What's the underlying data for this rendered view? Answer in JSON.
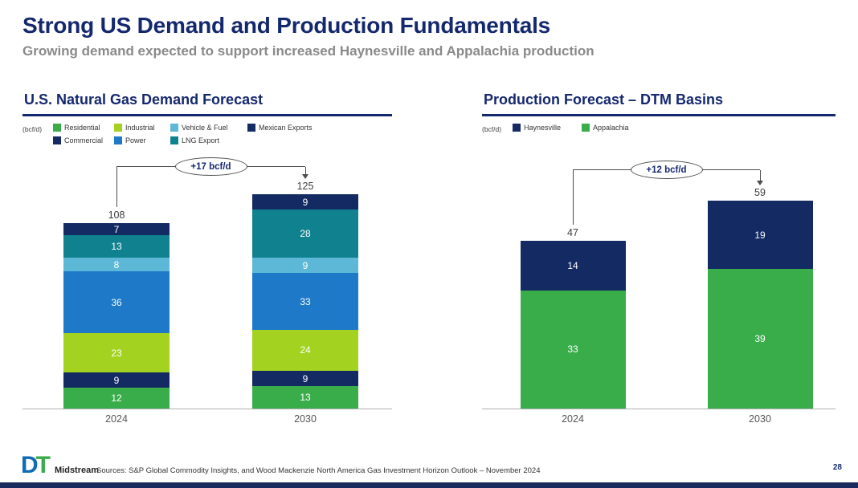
{
  "header": {
    "title": "Strong US Demand and Production Fundamentals",
    "subtitle": "Growing demand expected to support increased Haynesville and Appalachia production"
  },
  "footer": {
    "logo_dt_d": "D",
    "logo_dt_t": "T",
    "logo_text": "Midstream",
    "source": "Sources: S&P Global Commodity Insights, and Wood Mackenzie North America Gas Investment Horizon Outlook – November 2024",
    "page_number": "28"
  },
  "colors": {
    "navy": "#142a63",
    "title_navy": "#14286e",
    "subtitle_gray": "#8a8a8a",
    "green": "#3aad4b",
    "lime": "#a3d221",
    "blue": "#1e79c8",
    "light_blue": "#5cb8d6",
    "teal": "#10828f"
  },
  "chart_data": [
    {
      "type": "bar",
      "stacked": true,
      "title": "U.S. Natural Gas Demand Forecast",
      "unit_label": "(bcf/d)",
      "categories": [
        "2024",
        "2030"
      ],
      "series": [
        {
          "name": "Residential",
          "color": "#3aad4b",
          "values": [
            12,
            13
          ]
        },
        {
          "name": "Commercial",
          "color": "#142a63",
          "values": [
            9,
            9
          ]
        },
        {
          "name": "Industrial",
          "color": "#a3d221",
          "values": [
            23,
            24
          ]
        },
        {
          "name": "Power",
          "color": "#1e79c8",
          "values": [
            36,
            33
          ]
        },
        {
          "name": "Vehicle & Fuel",
          "color": "#5cb8d6",
          "values": [
            8,
            9
          ]
        },
        {
          "name": "LNG Export",
          "color": "#10828f",
          "values": [
            13,
            28
          ]
        },
        {
          "name": "Mexican Exports",
          "color": "#142a63",
          "values": [
            7,
            9
          ]
        }
      ],
      "legend_order": [
        [
          "Residential",
          "Industrial",
          "Vehicle & Fuel",
          "Mexican Exports"
        ],
        [
          "Commercial",
          "Power",
          "LNG Export"
        ]
      ],
      "totals": [
        108,
        125
      ],
      "annotation": "+17 bcf/d",
      "ylim": [
        0,
        125
      ],
      "grid": false,
      "legend_position": "top"
    },
    {
      "type": "bar",
      "stacked": true,
      "title": "Production Forecast – DTM Basins",
      "unit_label": "(bcf/d)",
      "categories": [
        "2024",
        "2030"
      ],
      "series": [
        {
          "name": "Appalachia",
          "color": "#3aad4b",
          "values": [
            33,
            39
          ]
        },
        {
          "name": "Haynesville",
          "color": "#142a63",
          "values": [
            14,
            19
          ]
        }
      ],
      "legend_order": [
        [
          "Haynesville",
          "Appalachia"
        ]
      ],
      "totals": [
        47,
        59
      ],
      "annotation": "+12 bcf/d",
      "ylim": [
        0,
        59
      ],
      "grid": false,
      "legend_position": "top"
    }
  ]
}
